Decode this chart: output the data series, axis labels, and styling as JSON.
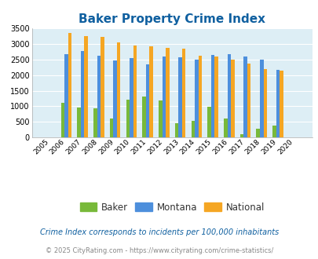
{
  "title": "Baker Property Crime Index",
  "years": [
    2005,
    2006,
    2007,
    2008,
    2009,
    2010,
    2011,
    2012,
    2013,
    2014,
    2015,
    2016,
    2017,
    2018,
    2019,
    2020
  ],
  "baker": [
    0,
    1100,
    950,
    930,
    600,
    1220,
    1300,
    1180,
    450,
    540,
    980,
    600,
    100,
    270,
    380,
    0
  ],
  "montana": [
    0,
    2670,
    2770,
    2620,
    2480,
    2560,
    2350,
    2600,
    2580,
    2500,
    2640,
    2680,
    2600,
    2510,
    2175,
    0
  ],
  "national": [
    0,
    3350,
    3260,
    3220,
    3050,
    2960,
    2930,
    2870,
    2860,
    2620,
    2600,
    2490,
    2380,
    2200,
    2150,
    0
  ],
  "baker_color": "#78b93a",
  "montana_color": "#4d8fdc",
  "national_color": "#f5a623",
  "bg_color": "#ddeef5",
  "ylim": [
    0,
    3500
  ],
  "yticks": [
    0,
    500,
    1000,
    1500,
    2000,
    2500,
    3000,
    3500
  ],
  "title_color": "#1060a0",
  "title_fontsize": 11,
  "legend_labels": [
    "Baker",
    "Montana",
    "National"
  ],
  "footnote1": "Crime Index corresponds to incidents per 100,000 inhabitants",
  "footnote2": "© 2025 CityRating.com - https://www.cityrating.com/crime-statistics/",
  "footnote1_color": "#1060a0",
  "footnote2_color": "#888888"
}
